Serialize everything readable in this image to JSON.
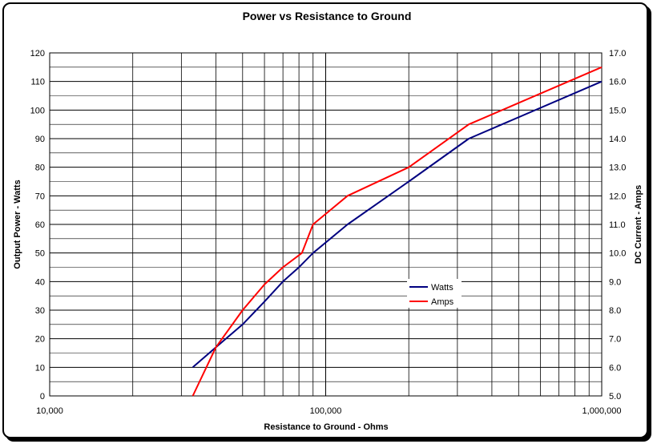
{
  "chart_data": {
    "type": "line",
    "title": "Power vs Resistance to Ground",
    "xlabel": "Resistance to Ground - Ohms",
    "ylabel_left": "Output Power - Watts",
    "ylabel_right": "DC Current - Amps",
    "x_scale": "log",
    "xlim": [
      10000,
      1000000
    ],
    "ylim_left": [
      0,
      120
    ],
    "ylim_right": [
      5.0,
      17.0
    ],
    "x_tick_labels": [
      "10,000",
      "100,000",
      "1,000,000"
    ],
    "x_tick_values": [
      10000,
      100000,
      1000000
    ],
    "y_left_ticks": [
      "0",
      "10",
      "20",
      "30",
      "40",
      "50",
      "60",
      "70",
      "80",
      "90",
      "100",
      "110",
      "120"
    ],
    "y_right_ticks": [
      "5.0",
      "6.0",
      "7.0",
      "8.0",
      "9.0",
      "10.0",
      "11.0",
      "12.0",
      "13.0",
      "14.0",
      "15.0",
      "16.0",
      "17.0"
    ],
    "grid": true,
    "legend_position": "center-right",
    "series": [
      {
        "name": "Watts",
        "axis": "left",
        "color": "#000080",
        "x": [
          33000,
          40000,
          50000,
          60000,
          70000,
          80000,
          90000,
          120000,
          200000,
          330000,
          1000000
        ],
        "y": [
          10,
          17,
          25,
          33,
          40,
          45,
          50,
          60,
          75,
          90,
          110
        ]
      },
      {
        "name": "Amps",
        "axis": "right",
        "color": "#ff0000",
        "x": [
          33000,
          40000,
          50000,
          60000,
          70000,
          82000,
          90000,
          120000,
          200000,
          330000,
          1000000
        ],
        "y": [
          5.0,
          6.7,
          8.0,
          8.9,
          9.5,
          10.0,
          11.0,
          12.0,
          13.0,
          14.5,
          16.5
        ]
      }
    ]
  }
}
